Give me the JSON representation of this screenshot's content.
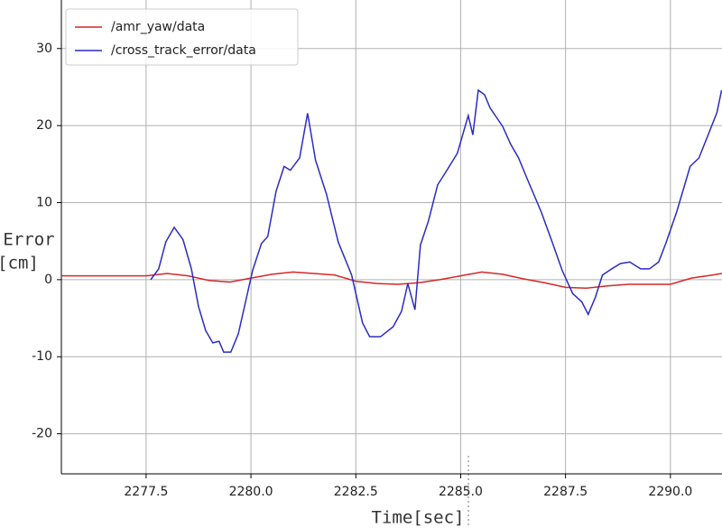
{
  "chart_data": {
    "type": "line",
    "xlabel": "Time[sec]",
    "ylabel": [
      "Error",
      "[cm]"
    ],
    "xlim": [
      2275.48,
      2291.23
    ],
    "ylim": [
      -25.2,
      36.3
    ],
    "xticks": [
      2277.5,
      {
        "value": 2280,
        "label": "2280.0"
      },
      2282.5,
      {
        "value": 2285,
        "label": "2285.0"
      },
      2287.5,
      {
        "value": 2290,
        "label": "2290.0"
      }
    ],
    "yticks": [
      -20,
      -10,
      0,
      10,
      20,
      30
    ],
    "grid": true,
    "legend": "upper left",
    "series": [
      {
        "name": "/amr_yaw/data",
        "color": "#d62728",
        "x": [
          2275.48,
          2276.0,
          2276.5,
          2277.0,
          2277.5,
          2278.0,
          2278.5,
          2279.0,
          2279.5,
          2280.0,
          2280.5,
          2281.0,
          2281.5,
          2282.0,
          2282.5,
          2283.0,
          2283.5,
          2284.0,
          2284.5,
          2285.0,
          2285.5,
          2286.0,
          2286.5,
          2287.0,
          2287.5,
          2288.0,
          2288.5,
          2289.0,
          2289.5,
          2290.0,
          2290.5,
          2291.0,
          2291.23
        ],
        "values": [
          0.5,
          0.5,
          0.5,
          0.5,
          0.5,
          0.8,
          0.5,
          -0.1,
          -0.3,
          0.2,
          0.7,
          1.0,
          0.8,
          0.6,
          -0.2,
          -0.5,
          -0.6,
          -0.4,
          0.0,
          0.5,
          1.0,
          0.7,
          0.1,
          -0.4,
          -1.0,
          -1.1,
          -0.8,
          -0.6,
          -0.6,
          -0.6,
          0.2,
          0.6,
          0.8
        ]
      },
      {
        "name": "/cross_track_error/data",
        "color": "#2b2bc4",
        "x": [
          2277.61,
          2277.8,
          2277.97,
          2278.17,
          2278.38,
          2278.58,
          2278.75,
          2278.92,
          2279.09,
          2279.24,
          2279.35,
          2279.52,
          2279.7,
          2279.87,
          2280.04,
          2280.25,
          2280.4,
          2280.6,
          2280.79,
          2280.94,
          2281.16,
          2281.35,
          2281.54,
          2281.8,
          2282.08,
          2282.4,
          2282.66,
          2282.83,
          2283.09,
          2283.39,
          2283.59,
          2283.74,
          2283.91,
          2284.04,
          2284.23,
          2284.45,
          2284.66,
          2284.92,
          2285.18,
          2285.29,
          2285.42,
          2285.57,
          2285.7,
          2285.85,
          2286.0,
          2286.19,
          2286.38,
          2286.6,
          2286.92,
          2287.18,
          2287.42,
          2287.67,
          2287.89,
          2288.04,
          2288.21,
          2288.38,
          2288.6,
          2288.81,
          2289.03,
          2289.29,
          2289.5,
          2289.72,
          2289.89,
          2290.15,
          2290.47,
          2290.68,
          2290.9,
          2291.11,
          2291.22
        ],
        "values": [
          0,
          1.4,
          4.9,
          6.8,
          5.2,
          1.4,
          -3.5,
          -6.6,
          -8.2,
          -8.0,
          -9.4,
          -9.4,
          -7.0,
          -2.9,
          1.2,
          4.7,
          5.6,
          11.5,
          14.7,
          14.2,
          15.8,
          21.6,
          15.5,
          11.1,
          4.9,
          0.6,
          -5.6,
          -7.4,
          -7.4,
          -6.1,
          -4.1,
          -0.5,
          -3.9,
          4.5,
          7.6,
          12.3,
          14.1,
          16.4,
          21.3,
          18.8,
          24.6,
          24.0,
          22.3,
          21.1,
          19.9,
          17.6,
          15.8,
          12.9,
          8.8,
          4.9,
          1.2,
          -1.8,
          -2.9,
          -4.5,
          -2.3,
          0.6,
          1.4,
          2.1,
          2.3,
          1.4,
          1.4,
          2.3,
          4.7,
          8.8,
          14.7,
          15.8,
          18.8,
          21.7,
          24.6
        ]
      }
    ]
  }
}
